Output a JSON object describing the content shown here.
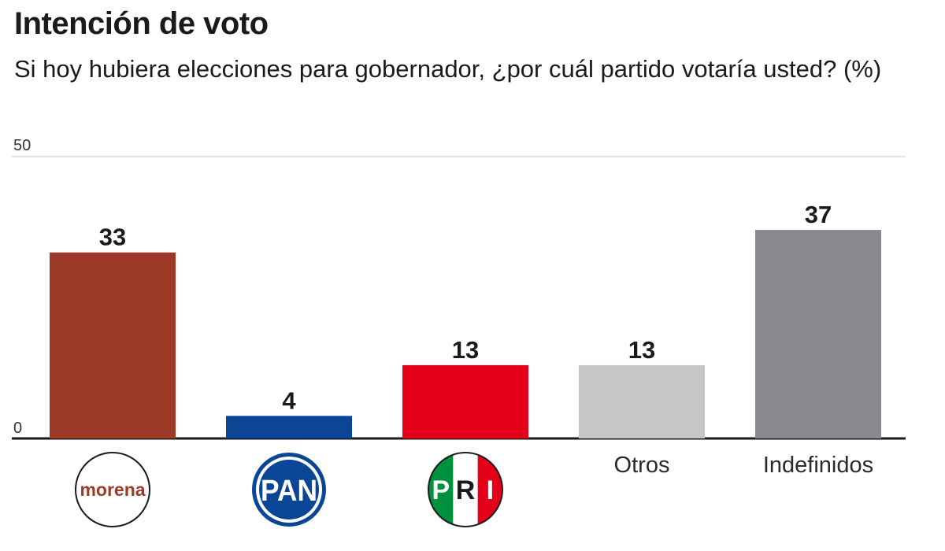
{
  "chart_data": {
    "type": "bar",
    "title": "Intención de voto",
    "subtitle": "Si hoy hubiera elecciones para gobernador, ¿por cuál partido votaría usted? (%)",
    "xlabel": "",
    "ylabel": "",
    "ylim": [
      0,
      50
    ],
    "yticks": [
      "0",
      "50"
    ],
    "grid": "top line only",
    "categories": [
      "morena",
      "PAN",
      "PRI",
      "Otros",
      "Indefinidos"
    ],
    "values": [
      33,
      4,
      13,
      13,
      37
    ],
    "value_labels": [
      "33",
      "4",
      "13",
      "13",
      "37"
    ],
    "category_display": [
      "logo",
      "logo",
      "logo",
      "text",
      "text"
    ],
    "colors": [
      "#9c3a27",
      "#0a4596",
      "#e30018",
      "#c5c6c8",
      "#898a8d"
    ],
    "logos": {
      "morena": {
        "text": "morena",
        "color": "#9c3a27"
      },
      "PAN": {
        "text": "PAN",
        "color": "#0a4596"
      },
      "PRI": {
        "letters": [
          "P",
          "R",
          "I"
        ],
        "colors": [
          "#00913f",
          "#ffffff",
          "#e30018"
        ]
      }
    }
  }
}
